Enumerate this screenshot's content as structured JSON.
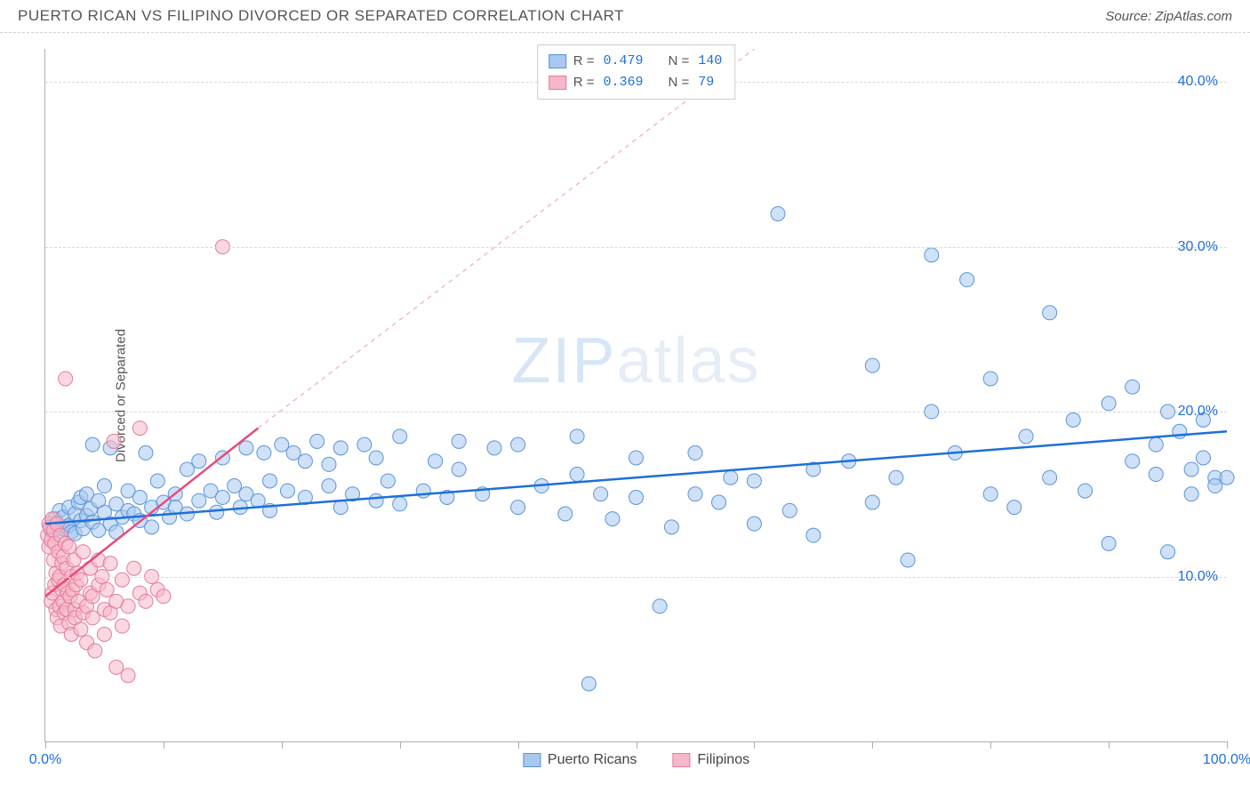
{
  "header": {
    "title": "PUERTO RICAN VS FILIPINO DIVORCED OR SEPARATED CORRELATION CHART",
    "source_prefix": "Source: ",
    "source": "ZipAtlas.com"
  },
  "chart": {
    "type": "scatter",
    "ylabel": "Divorced or Separated",
    "watermark_bold": "ZIP",
    "watermark_thin": "atlas",
    "xlim": [
      0,
      100
    ],
    "ylim": [
      0,
      42
    ],
    "xtick_positions": [
      0,
      10,
      20,
      30,
      40,
      50,
      60,
      70,
      80,
      90,
      100
    ],
    "xtick_labels": {
      "0": "0.0%",
      "100": "100.0%"
    },
    "ytick_positions": [
      10,
      20,
      30,
      40
    ],
    "ytick_labels": {
      "10": "10.0%",
      "20": "20.0%",
      "30": "30.0%",
      "40": "40.0%"
    },
    "grid_color": "#d8d8d8",
    "background_color": "#ffffff",
    "marker_radius": 8,
    "marker_opacity": 0.55,
    "series": [
      {
        "name": "Puerto Ricans",
        "color_fill": "#a8c8ee",
        "color_stroke": "#5a94db",
        "r": "0.479",
        "n": "140",
        "trend": {
          "x1": 0,
          "y1": 13.2,
          "x2": 100,
          "y2": 18.8,
          "color": "#1e6fd9",
          "width": 2.5,
          "dash": "none"
        },
        "trend_ext": null,
        "points": [
          [
            0.5,
            12.8
          ],
          [
            0.8,
            13.5
          ],
          [
            1.0,
            13.2
          ],
          [
            1.2,
            14.0
          ],
          [
            1.2,
            12.5
          ],
          [
            1.5,
            13.6
          ],
          [
            1.5,
            12.9
          ],
          [
            1.8,
            13.0
          ],
          [
            2.0,
            14.2
          ],
          [
            2.0,
            13.1
          ],
          [
            2.2,
            12.7
          ],
          [
            2.5,
            13.8
          ],
          [
            2.5,
            12.6
          ],
          [
            2.8,
            14.5
          ],
          [
            3.0,
            13.4
          ],
          [
            3.0,
            14.8
          ],
          [
            3.2,
            12.9
          ],
          [
            3.5,
            13.7
          ],
          [
            3.5,
            15.0
          ],
          [
            3.8,
            14.1
          ],
          [
            4.0,
            13.3
          ],
          [
            4.0,
            18.0
          ],
          [
            4.5,
            12.8
          ],
          [
            4.5,
            14.6
          ],
          [
            5.0,
            13.9
          ],
          [
            5.0,
            15.5
          ],
          [
            5.5,
            13.2
          ],
          [
            5.5,
            17.8
          ],
          [
            6.0,
            14.4
          ],
          [
            6.0,
            12.7
          ],
          [
            6.5,
            13.6
          ],
          [
            7.0,
            15.2
          ],
          [
            7.0,
            14.0
          ],
          [
            7.5,
            13.8
          ],
          [
            8.0,
            14.8
          ],
          [
            8.0,
            13.4
          ],
          [
            8.5,
            17.5
          ],
          [
            9.0,
            14.2
          ],
          [
            9.0,
            13.0
          ],
          [
            9.5,
            15.8
          ],
          [
            10.0,
            14.5
          ],
          [
            10.5,
            13.6
          ],
          [
            11.0,
            15.0
          ],
          [
            11.0,
            14.2
          ],
          [
            12.0,
            13.8
          ],
          [
            12.0,
            16.5
          ],
          [
            13.0,
            14.6
          ],
          [
            13.0,
            17.0
          ],
          [
            14.0,
            15.2
          ],
          [
            14.5,
            13.9
          ],
          [
            15.0,
            14.8
          ],
          [
            15.0,
            17.2
          ],
          [
            16.0,
            15.5
          ],
          [
            16.5,
            14.2
          ],
          [
            17.0,
            17.8
          ],
          [
            17.0,
            15.0
          ],
          [
            18.0,
            14.6
          ],
          [
            18.5,
            17.5
          ],
          [
            19.0,
            15.8
          ],
          [
            19.0,
            14.0
          ],
          [
            20.0,
            18.0
          ],
          [
            20.5,
            15.2
          ],
          [
            21.0,
            17.5
          ],
          [
            22.0,
            14.8
          ],
          [
            22.0,
            17.0
          ],
          [
            23.0,
            18.2
          ],
          [
            24.0,
            15.5
          ],
          [
            24.0,
            16.8
          ],
          [
            25.0,
            14.2
          ],
          [
            25.0,
            17.8
          ],
          [
            26.0,
            15.0
          ],
          [
            27.0,
            18.0
          ],
          [
            28.0,
            14.6
          ],
          [
            28.0,
            17.2
          ],
          [
            29.0,
            15.8
          ],
          [
            30.0,
            14.4
          ],
          [
            30.0,
            18.5
          ],
          [
            32.0,
            15.2
          ],
          [
            33.0,
            17.0
          ],
          [
            34.0,
            14.8
          ],
          [
            35.0,
            16.5
          ],
          [
            35.0,
            18.2
          ],
          [
            37.0,
            15.0
          ],
          [
            38.0,
            17.8
          ],
          [
            40.0,
            14.2
          ],
          [
            40.0,
            18.0
          ],
          [
            42.0,
            15.5
          ],
          [
            44.0,
            13.8
          ],
          [
            45.0,
            16.2
          ],
          [
            45.0,
            18.5
          ],
          [
            46.0,
            3.5
          ],
          [
            47.0,
            15.0
          ],
          [
            48.0,
            13.5
          ],
          [
            50.0,
            17.2
          ],
          [
            50.0,
            14.8
          ],
          [
            52.0,
            8.2
          ],
          [
            53.0,
            13.0
          ],
          [
            55.0,
            15.0
          ],
          [
            55.0,
            17.5
          ],
          [
            57.0,
            14.5
          ],
          [
            58.0,
            16.0
          ],
          [
            60.0,
            13.2
          ],
          [
            60.0,
            15.8
          ],
          [
            62.0,
            32.0
          ],
          [
            63.0,
            14.0
          ],
          [
            65.0,
            16.5
          ],
          [
            65.0,
            12.5
          ],
          [
            68.0,
            17.0
          ],
          [
            70.0,
            22.8
          ],
          [
            70.0,
            14.5
          ],
          [
            72.0,
            16.0
          ],
          [
            73.0,
            11.0
          ],
          [
            75.0,
            20.0
          ],
          [
            75.0,
            29.5
          ],
          [
            77.0,
            17.5
          ],
          [
            78.0,
            28.0
          ],
          [
            80.0,
            15.0
          ],
          [
            80.0,
            22.0
          ],
          [
            82.0,
            14.2
          ],
          [
            83.0,
            18.5
          ],
          [
            85.0,
            26.0
          ],
          [
            85.0,
            16.0
          ],
          [
            87.0,
            19.5
          ],
          [
            88.0,
            15.2
          ],
          [
            90.0,
            12.0
          ],
          [
            90.0,
            20.5
          ],
          [
            92.0,
            17.0
          ],
          [
            92.0,
            21.5
          ],
          [
            94.0,
            18.0
          ],
          [
            94.0,
            16.2
          ],
          [
            95.0,
            20.0
          ],
          [
            95.0,
            11.5
          ],
          [
            96.0,
            18.8
          ],
          [
            97.0,
            16.5
          ],
          [
            97.0,
            15.0
          ],
          [
            98.0,
            19.5
          ],
          [
            98.0,
            17.2
          ],
          [
            99.0,
            16.0
          ],
          [
            99.0,
            15.5
          ],
          [
            100.0,
            16.0
          ]
        ]
      },
      {
        "name": "Filipinos",
        "color_fill": "#f5b8c8",
        "color_stroke": "#e67a9a",
        "r": "0.369",
        "n": " 79",
        "trend": {
          "x1": 0,
          "y1": 8.8,
          "x2": 18,
          "y2": 19.0,
          "color": "#e84a78",
          "width": 2.5,
          "dash": "none"
        },
        "trend_ext": {
          "x1": 18,
          "y1": 19.0,
          "x2": 60,
          "y2": 42.0,
          "color": "#f5b8c8",
          "width": 1.5,
          "dash": "5,5"
        },
        "points": [
          [
            0.2,
            12.5
          ],
          [
            0.3,
            13.2
          ],
          [
            0.3,
            11.8
          ],
          [
            0.4,
            13.0
          ],
          [
            0.5,
            12.2
          ],
          [
            0.5,
            8.5
          ],
          [
            0.6,
            13.5
          ],
          [
            0.6,
            9.0
          ],
          [
            0.7,
            12.8
          ],
          [
            0.7,
            11.0
          ],
          [
            0.8,
            9.5
          ],
          [
            0.8,
            12.0
          ],
          [
            0.9,
            10.2
          ],
          [
            0.9,
            8.0
          ],
          [
            1.0,
            13.2
          ],
          [
            1.0,
            7.5
          ],
          [
            1.1,
            9.8
          ],
          [
            1.1,
            11.5
          ],
          [
            1.2,
            8.2
          ],
          [
            1.2,
            10.0
          ],
          [
            1.3,
            12.5
          ],
          [
            1.3,
            7.0
          ],
          [
            1.4,
            9.2
          ],
          [
            1.4,
            10.8
          ],
          [
            1.5,
            8.5
          ],
          [
            1.5,
            11.2
          ],
          [
            1.6,
            7.8
          ],
          [
            1.6,
            9.5
          ],
          [
            1.7,
            12.0
          ],
          [
            1.7,
            22.0
          ],
          [
            1.8,
            8.0
          ],
          [
            1.8,
            10.5
          ],
          [
            1.9,
            9.0
          ],
          [
            2.0,
            11.8
          ],
          [
            2.0,
            7.2
          ],
          [
            2.1,
            8.8
          ],
          [
            2.2,
            10.0
          ],
          [
            2.2,
            6.5
          ],
          [
            2.3,
            9.2
          ],
          [
            2.4,
            11.0
          ],
          [
            2.5,
            8.0
          ],
          [
            2.5,
            7.5
          ],
          [
            2.6,
            9.5
          ],
          [
            2.7,
            10.2
          ],
          [
            2.8,
            8.5
          ],
          [
            3.0,
            6.8
          ],
          [
            3.0,
            9.8
          ],
          [
            3.2,
            11.5
          ],
          [
            3.2,
            7.8
          ],
          [
            3.5,
            8.2
          ],
          [
            3.5,
            6.0
          ],
          [
            3.8,
            10.5
          ],
          [
            3.8,
            9.0
          ],
          [
            4.0,
            7.5
          ],
          [
            4.0,
            8.8
          ],
          [
            4.2,
            5.5
          ],
          [
            4.5,
            11.0
          ],
          [
            4.5,
            9.5
          ],
          [
            4.8,
            10.0
          ],
          [
            5.0,
            8.0
          ],
          [
            5.0,
            6.5
          ],
          [
            5.2,
            9.2
          ],
          [
            5.5,
            10.8
          ],
          [
            5.5,
            7.8
          ],
          [
            5.8,
            18.2
          ],
          [
            6.0,
            8.5
          ],
          [
            6.0,
            4.5
          ],
          [
            6.5,
            9.8
          ],
          [
            6.5,
            7.0
          ],
          [
            7.0,
            8.2
          ],
          [
            7.0,
            4.0
          ],
          [
            7.5,
            10.5
          ],
          [
            8.0,
            9.0
          ],
          [
            8.0,
            19.0
          ],
          [
            8.5,
            8.5
          ],
          [
            9.0,
            10.0
          ],
          [
            9.5,
            9.2
          ],
          [
            10.0,
            8.8
          ],
          [
            15.0,
            30.0
          ]
        ]
      }
    ],
    "legend_top_labels": {
      "R": "R =",
      "N": "N ="
    },
    "legend_bottom": [
      {
        "label": "Puerto Ricans",
        "fill": "#a8c8ee",
        "stroke": "#5a94db"
      },
      {
        "label": "Filipinos",
        "fill": "#f5b8c8",
        "stroke": "#e67a9a"
      }
    ]
  }
}
